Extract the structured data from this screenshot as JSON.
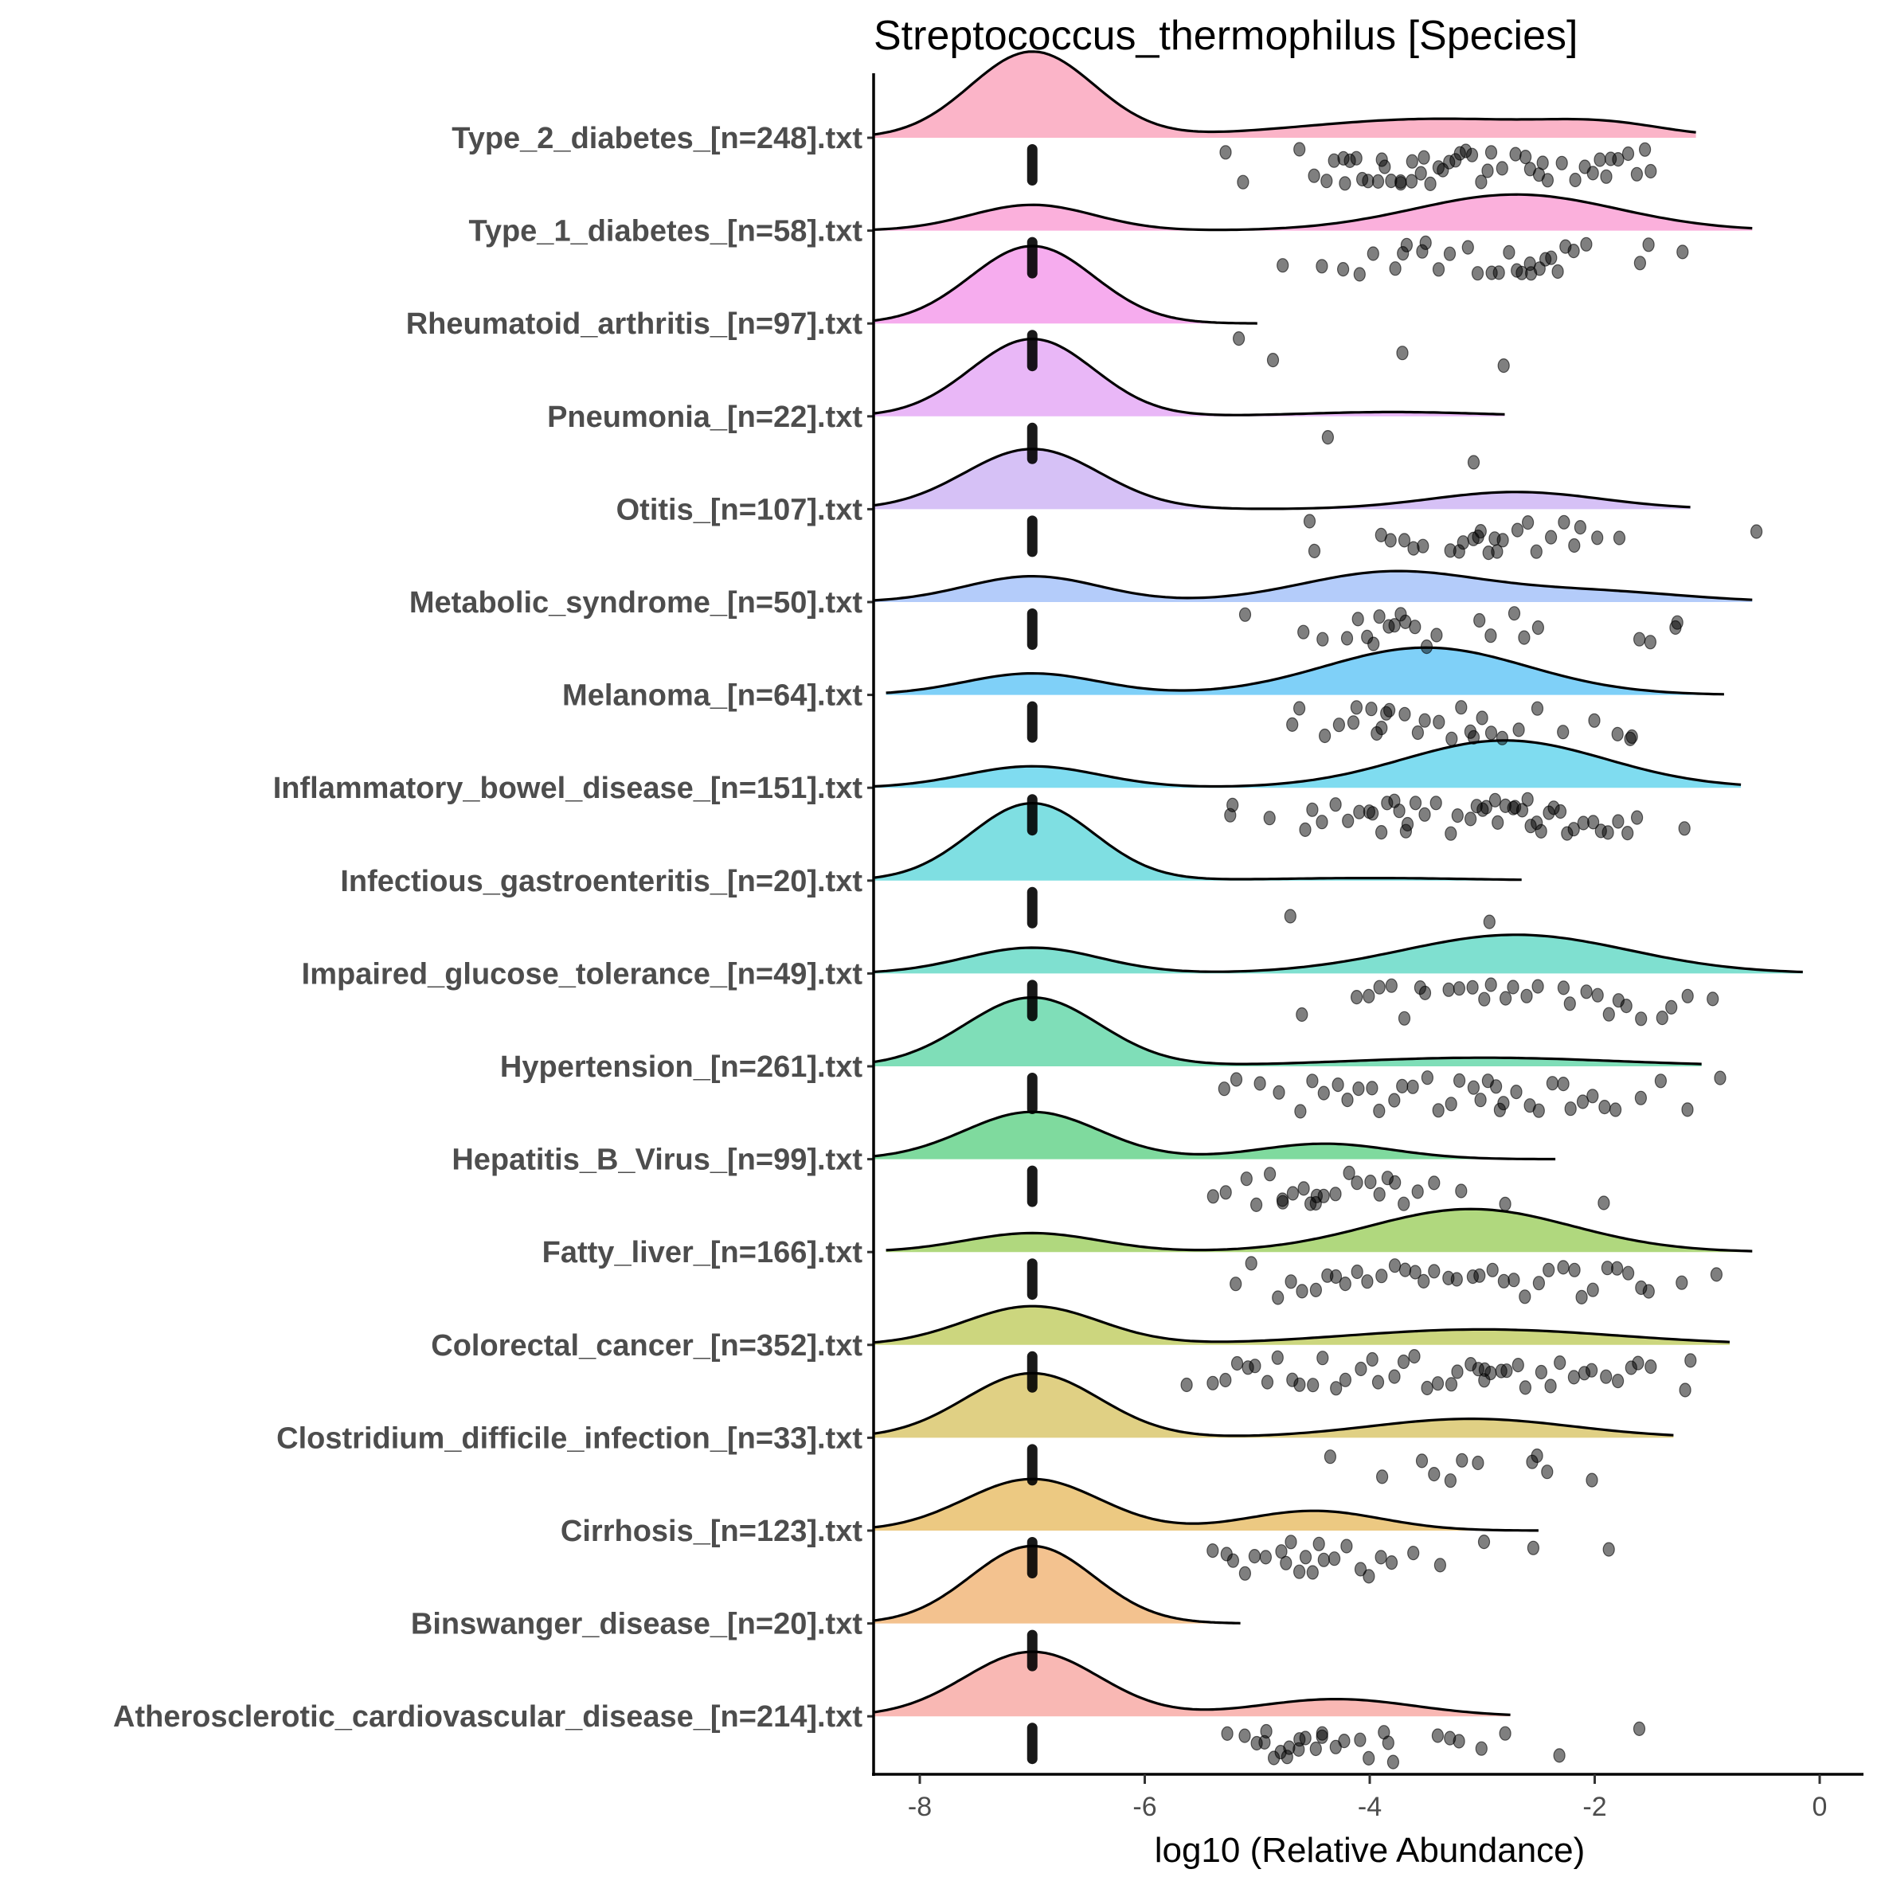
{
  "chart_data": {
    "type": "raincloud",
    "title": "Streptococcus_thermophilus [Species]",
    "xlabel": "log10 (Relative Abundance)",
    "ylabel": "",
    "xlim": [
      -8.4,
      0.4
    ],
    "xticks": [
      -8,
      -6,
      -4,
      -2,
      0
    ],
    "xtick_labels": [
      "-8",
      "-6",
      "-4",
      "-2",
      "0"
    ],
    "grid": false,
    "legend": "none",
    "zero_value": -7,
    "groups": [
      {
        "label": "Type_2_diabetes_[n=248].txt",
        "n": 248,
        "color": "#FBB4C8",
        "density": {
          "range": [
            -8.4,
            -1.1
          ],
          "modes": [
            [
              -7,
              0.55,
              1.0
            ],
            [
              -3.4,
              1.2,
              0.22
            ],
            [
              -1.9,
              0.5,
              0.1
            ]
          ]
        },
        "points": [
          -5.3,
          -5.1,
          -4.6,
          -4.5,
          -4.4,
          -4.3,
          -4.25,
          -4.2,
          -4.15,
          -4.1,
          -4.05,
          -4.0,
          -3.95,
          -3.9,
          -3.85,
          -3.8,
          -3.75,
          -3.7,
          -3.65,
          -3.6,
          -3.55,
          -3.5,
          -3.45,
          -3.4,
          -3.35,
          -3.3,
          -3.25,
          -3.2,
          -3.15,
          -3.1,
          -3.0,
          -2.95,
          -2.9,
          -2.8,
          -2.7,
          -2.6,
          -2.55,
          -2.5,
          -2.45,
          -2.4,
          -2.3,
          -2.2,
          -2.1,
          -2.0,
          -1.95,
          -1.9,
          -1.85,
          -1.8,
          -1.7,
          -1.6,
          -1.55,
          -1.5
        ]
      },
      {
        "label": "Type_1_diabetes_[n=58].txt",
        "n": 58,
        "color": "#FBB0DC",
        "density": {
          "range": [
            -8.4,
            -0.6
          ],
          "modes": [
            [
              -7,
              0.55,
              0.3
            ],
            [
              -2.7,
              0.9,
              0.42
            ]
          ]
        },
        "points": [
          -4.75,
          -4.4,
          -4.25,
          -4.1,
          -3.95,
          -3.8,
          -3.7,
          -3.65,
          -3.55,
          -3.5,
          -3.4,
          -3.3,
          -3.1,
          -3.05,
          -2.9,
          -2.85,
          -2.75,
          -2.7,
          -2.65,
          -2.6,
          -2.55,
          -2.5,
          -2.45,
          -2.4,
          -2.3,
          -2.25,
          -2.2,
          -2.1,
          -1.6,
          -1.5,
          -1.2
        ]
      },
      {
        "label": "Rheumatoid_arthritis_[n=97].txt",
        "n": 97,
        "color": "#F6ACEE",
        "density": {
          "range": [
            -8.4,
            -5.0
          ],
          "modes": [
            [
              -7,
              0.55,
              0.9
            ]
          ]
        },
        "points": [
          -5.15,
          -4.85,
          -3.7,
          -2.8
        ]
      },
      {
        "label": "Pneumonia_[n=22].txt",
        "n": 22,
        "color": "#E9B7F7",
        "density": {
          "range": [
            -8.4,
            -2.8
          ],
          "modes": [
            [
              -7,
              0.55,
              0.9
            ],
            [
              -3.8,
              0.8,
              0.05
            ]
          ]
        },
        "points": [
          -4.35,
          -3.1
        ]
      },
      {
        "label": "Otitis_[n=107].txt",
        "n": 107,
        "color": "#D6C1F6",
        "density": {
          "range": [
            -8.4,
            -1.15
          ],
          "modes": [
            [
              -7,
              0.6,
              0.7
            ],
            [
              -2.7,
              0.75,
              0.2
            ]
          ]
        },
        "points": [
          -4.55,
          -4.5,
          -3.9,
          -3.8,
          -3.7,
          -3.6,
          -3.5,
          -3.3,
          -3.2,
          -3.15,
          -3.1,
          -3.05,
          -3.0,
          -2.95,
          -2.9,
          -2.85,
          -2.8,
          -2.7,
          -2.6,
          -2.5,
          -2.4,
          -2.3,
          -2.2,
          -2.1,
          -2.0,
          -1.8,
          -0.55
        ]
      },
      {
        "label": "Metabolic_syndrome_[n=50].txt",
        "n": 50,
        "color": "#B4CCFA",
        "density": {
          "range": [
            -8.4,
            -0.6
          ],
          "modes": [
            [
              -7,
              0.6,
              0.3
            ],
            [
              -3.8,
              0.8,
              0.35
            ],
            [
              -2.0,
              0.8,
              0.12
            ]
          ]
        },
        "points": [
          -5.1,
          -4.6,
          -4.4,
          -4.2,
          -4.1,
          -4.0,
          -3.95,
          -3.9,
          -3.85,
          -3.8,
          -3.75,
          -3.7,
          -3.6,
          -3.5,
          -3.4,
          -3.0,
          -2.9,
          -2.7,
          -2.6,
          -2.5,
          -1.6,
          -1.5,
          -1.3,
          -1.25
        ]
      },
      {
        "label": "Melanoma_[n=64].txt",
        "n": 64,
        "color": "#7FD0F8",
        "density": {
          "range": [
            -8.3,
            -0.85
          ],
          "modes": [
            [
              -7,
              0.6,
              0.25
            ],
            [
              -3.5,
              0.9,
              0.55
            ]
          ]
        },
        "points": [
          -4.7,
          -4.6,
          -4.4,
          -4.25,
          -4.15,
          -4.1,
          -4.0,
          -3.95,
          -3.9,
          -3.85,
          -3.8,
          -3.7,
          -3.6,
          -3.5,
          -3.4,
          -3.3,
          -3.2,
          -3.1,
          -3.05,
          -3.0,
          -2.9,
          -2.8,
          -2.7,
          -2.5,
          -2.3,
          -2.0,
          -1.8,
          -1.7,
          -1.65
        ]
      },
      {
        "label": "Inflammatory_bowel_disease_[n=151].txt",
        "n": 151,
        "color": "#7FDCF0",
        "density": {
          "range": [
            -8.4,
            -0.7
          ],
          "modes": [
            [
              -7,
              0.6,
              0.25
            ],
            [
              -2.8,
              0.9,
              0.55
            ]
          ]
        },
        "points": [
          -5.25,
          -5.2,
          -4.9,
          -4.6,
          -4.5,
          -4.4,
          -4.3,
          -4.2,
          -4.1,
          -4.0,
          -3.95,
          -3.9,
          -3.85,
          -3.8,
          -3.75,
          -3.7,
          -3.65,
          -3.6,
          -3.5,
          -3.4,
          -3.3,
          -3.2,
          -3.1,
          -3.05,
          -3.0,
          -2.95,
          -2.9,
          -2.85,
          -2.8,
          -2.75,
          -2.7,
          -2.65,
          -2.6,
          -2.55,
          -2.5,
          -2.45,
          -2.4,
          -2.35,
          -2.3,
          -2.25,
          -2.2,
          -2.1,
          -2.0,
          -1.95,
          -1.9,
          -1.8,
          -1.7,
          -1.6,
          -1.2
        ]
      },
      {
        "label": "Infectious_gastroenteritis_[n=20].txt",
        "n": 20,
        "color": "#7FDFE2",
        "density": {
          "range": [
            -8.4,
            -2.65
          ],
          "modes": [
            [
              -7,
              0.55,
              0.9
            ],
            [
              -4,
              0.9,
              0.03
            ]
          ]
        },
        "points": [
          -4.7,
          -2.95
        ]
      },
      {
        "label": "Impaired_glucose_tolerance_[n=49].txt",
        "n": 49,
        "color": "#7FE0D0",
        "density": {
          "range": [
            -8.4,
            -0.15
          ],
          "modes": [
            [
              -7,
              0.6,
              0.3
            ],
            [
              -2.7,
              1.0,
              0.45
            ]
          ]
        },
        "points": [
          -4.6,
          -4.1,
          -4.0,
          -3.9,
          -3.8,
          -3.7,
          -3.55,
          -3.5,
          -3.3,
          -3.2,
          -3.1,
          -3.0,
          -2.9,
          -2.8,
          -2.7,
          -2.6,
          -2.5,
          -2.3,
          -2.2,
          -2.1,
          -2.0,
          -1.9,
          -1.8,
          -1.7,
          -1.6,
          -1.4,
          -1.3,
          -1.2,
          -0.95
        ]
      },
      {
        "label": "Hypertension_[n=261].txt",
        "n": 261,
        "color": "#7FDEB8",
        "density": {
          "range": [
            -8.4,
            -1.05
          ],
          "modes": [
            [
              -7,
              0.6,
              0.8
            ],
            [
              -3.0,
              1.2,
              0.1
            ]
          ]
        },
        "points": [
          -5.3,
          -5.2,
          -5.0,
          -4.8,
          -4.6,
          -4.5,
          -4.4,
          -4.3,
          -4.2,
          -4.1,
          -4.0,
          -3.9,
          -3.8,
          -3.7,
          -3.6,
          -3.5,
          -3.4,
          -3.3,
          -3.2,
          -3.1,
          -3.0,
          -2.95,
          -2.9,
          -2.85,
          -2.8,
          -2.7,
          -2.6,
          -2.5,
          -2.4,
          -2.3,
          -2.2,
          -2.1,
          -2.0,
          -1.9,
          -1.8,
          -1.6,
          -1.4,
          -1.2,
          -0.9
        ]
      },
      {
        "label": "Hepatitis_B_Virus_[n=99].txt",
        "n": 99,
        "color": "#7FDA9E",
        "density": {
          "range": [
            -8.4,
            -2.35
          ],
          "modes": [
            [
              -7,
              0.6,
              0.55
            ],
            [
              -4.4,
              0.6,
              0.18
            ]
          ]
        },
        "points": [
          -5.4,
          -5.3,
          -5.1,
          -5.0,
          -4.9,
          -4.8,
          -4.75,
          -4.7,
          -4.6,
          -4.55,
          -4.5,
          -4.45,
          -4.4,
          -4.3,
          -4.2,
          -4.1,
          -4.0,
          -3.9,
          -3.85,
          -3.8,
          -3.7,
          -3.6,
          -3.4,
          -3.2,
          -2.8,
          -1.9
        ]
      },
      {
        "label": "Fatty_liver_[n=166].txt",
        "n": 166,
        "color": "#B0D87E",
        "density": {
          "range": [
            -8.3,
            -0.6
          ],
          "modes": [
            [
              -7,
              0.6,
              0.22
            ],
            [
              -3.1,
              0.9,
              0.5
            ]
          ]
        },
        "points": [
          -5.2,
          -5.05,
          -4.8,
          -4.7,
          -4.6,
          -4.5,
          -4.4,
          -4.3,
          -4.2,
          -4.1,
          -4.0,
          -3.9,
          -3.8,
          -3.7,
          -3.6,
          -3.5,
          -3.4,
          -3.3,
          -3.2,
          -3.1,
          -3.0,
          -2.9,
          -2.8,
          -2.7,
          -2.6,
          -2.5,
          -2.4,
          -2.3,
          -2.2,
          -2.1,
          -2.0,
          -1.9,
          -1.8,
          -1.7,
          -1.6,
          -1.5,
          -1.2,
          -0.9
        ]
      },
      {
        "label": "Colorectal_cancer_[n=352].txt",
        "n": 352,
        "color": "#CCD67E",
        "density": {
          "range": [
            -8.4,
            -0.8
          ],
          "modes": [
            [
              -7,
              0.6,
              0.45
            ],
            [
              -3.0,
              1.2,
              0.18
            ]
          ]
        },
        "points": [
          -5.6,
          -5.4,
          -5.3,
          -5.2,
          -5.1,
          -5.0,
          -4.9,
          -4.8,
          -4.7,
          -4.6,
          -4.5,
          -4.4,
          -4.3,
          -4.2,
          -4.1,
          -4.0,
          -3.9,
          -3.8,
          -3.7,
          -3.6,
          -3.5,
          -3.4,
          -3.3,
          -3.2,
          -3.1,
          -3.05,
          -3.0,
          -2.95,
          -2.9,
          -2.85,
          -2.8,
          -2.7,
          -2.6,
          -2.5,
          -2.4,
          -2.3,
          -2.2,
          -2.1,
          -2.0,
          -1.9,
          -1.8,
          -1.7,
          -1.6,
          -1.5,
          -1.2,
          -1.15
        ]
      },
      {
        "label": "Clostridium_difficile_infection_[n=33].txt",
        "n": 33,
        "color": "#E0D084",
        "density": {
          "range": [
            -8.4,
            -1.3
          ],
          "modes": [
            [
              -7,
              0.6,
              0.75
            ],
            [
              -3.1,
              0.9,
              0.22
            ]
          ]
        },
        "points": [
          -4.35,
          -3.9,
          -3.55,
          -3.4,
          -3.3,
          -3.2,
          -3.05,
          -2.55,
          -2.5,
          -2.45,
          -2.0
        ]
      },
      {
        "label": "Cirrhosis_[n=123].txt",
        "n": 123,
        "color": "#ECC982",
        "density": {
          "range": [
            -8.4,
            -2.5
          ],
          "modes": [
            [
              -7,
              0.6,
              0.6
            ],
            [
              -4.5,
              0.6,
              0.23
            ]
          ]
        },
        "points": [
          -5.4,
          -5.3,
          -5.2,
          -5.1,
          -5.0,
          -4.9,
          -4.8,
          -4.75,
          -4.7,
          -4.6,
          -4.55,
          -4.5,
          -4.45,
          -4.4,
          -4.3,
          -4.2,
          -4.1,
          -4.0,
          -3.9,
          -3.8,
          -3.6,
          -3.4,
          -3.0,
          -2.55,
          -1.9
        ]
      },
      {
        "label": "Binswanger_disease_[n=20].txt",
        "n": 20,
        "color": "#F3C28F",
        "density": {
          "range": [
            -8.4,
            -5.15
          ],
          "modes": [
            [
              -7,
              0.55,
              0.9
            ]
          ]
        },
        "points": []
      },
      {
        "label": "Atherosclerotic_cardiovascular_disease_[n=214].txt",
        "n": 214,
        "color": "#F9B8B4",
        "density": {
          "range": [
            -8.4,
            -2.75
          ],
          "modes": [
            [
              -7,
              0.6,
              0.75
            ],
            [
              -4.3,
              0.7,
              0.2
            ]
          ]
        },
        "points": [
          -5.25,
          -5.1,
          -5.0,
          -4.95,
          -4.9,
          -4.85,
          -4.8,
          -4.75,
          -4.7,
          -4.65,
          -4.6,
          -4.55,
          -4.5,
          -4.45,
          -4.4,
          -4.3,
          -4.2,
          -4.1,
          -4.0,
          -3.9,
          -3.85,
          -3.8,
          -3.4,
          -3.3,
          -3.2,
          -3.0,
          -2.8,
          -2.3,
          -1.6
        ]
      }
    ]
  }
}
